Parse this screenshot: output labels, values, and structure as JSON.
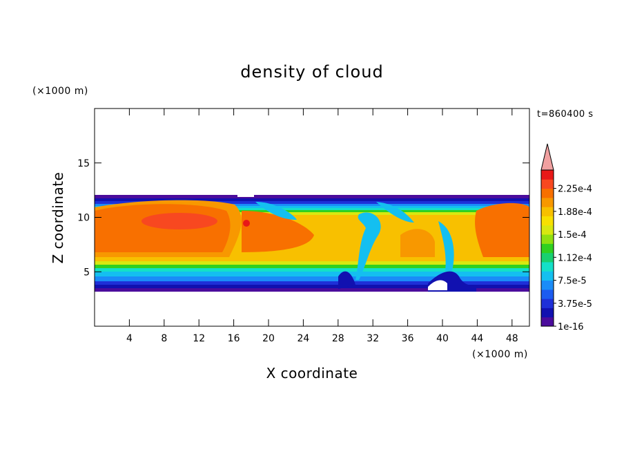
{
  "chart_data": {
    "type": "heatmap",
    "title": "density of cloud",
    "xlabel": "X coordinate",
    "ylabel": "Z coordinate",
    "x_unit": "(×1000 m)",
    "y_unit": "(×1000 m)",
    "time_label": "t=860400 s",
    "xlim": [
      0,
      50
    ],
    "ylim": [
      0,
      20
    ],
    "x_ticks": [
      4,
      8,
      12,
      16,
      20,
      24,
      28,
      32,
      36,
      40,
      44,
      48
    ],
    "y_ticks": [
      5,
      10,
      15
    ],
    "colorbar": {
      "labels": [
        "2.25e-4",
        "1.88e-4",
        "1.5e-4",
        "1.12e-4",
        "7.5e-5",
        "3.75e-5",
        "1e-16"
      ],
      "colors": [
        "#4b0c9c",
        "#1111b0",
        "#1e30d8",
        "#1c5cf0",
        "#1a8cf8",
        "#14bff0",
        "#14e0c8",
        "#18d070",
        "#30d020",
        "#90e010",
        "#d8e810",
        "#f8e000",
        "#f8c000",
        "#f89800",
        "#f87000",
        "#f84820",
        "#e81818",
        "#f0a0a0"
      ],
      "extend": "max"
    },
    "cloud_layer": {
      "base_km": 3.4,
      "top_km": 12.1,
      "core_km": [
        6.3,
        11.3
      ]
    }
  }
}
